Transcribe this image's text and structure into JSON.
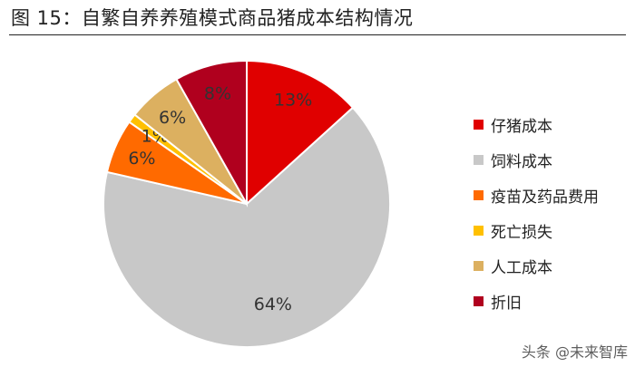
{
  "figure": {
    "title": "图 15：自繁自养养殖模式商品猪成本结构情况",
    "watermark": "头条 @未来智库"
  },
  "chart_data": {
    "type": "pie",
    "title": "图 15：自繁自养养殖模式商品猪成本结构情况",
    "start_angle_deg": 0,
    "direction": "clockwise",
    "legend_position": "right",
    "slices": [
      {
        "name": "仔猪成本",
        "value": 13,
        "label": "13%",
        "color": "#e00000"
      },
      {
        "name": "饲料成本",
        "value": 64,
        "label": "64%",
        "color": "#c8c8c8"
      },
      {
        "name": "疫苗及药品费用",
        "value": 6,
        "label": "6%",
        "color": "#ff6a00"
      },
      {
        "name": "死亡损失",
        "value": 1,
        "label": "1%",
        "color": "#ffc000"
      },
      {
        "name": "人工成本",
        "value": 6,
        "label": "6%",
        "color": "#dcb060"
      },
      {
        "name": "折旧",
        "value": 8,
        "label": "8%",
        "color": "#b0001e"
      }
    ]
  }
}
